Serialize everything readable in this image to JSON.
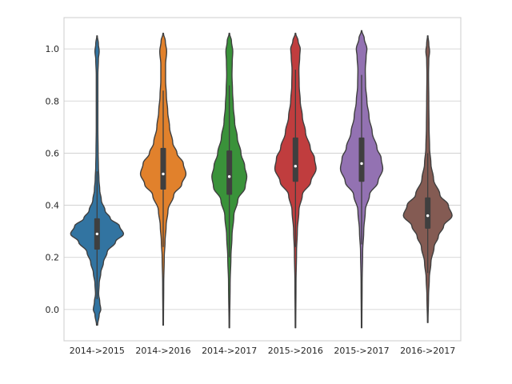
{
  "chart_data": {
    "type": "violin",
    "title": "",
    "xlabel": "",
    "ylabel": "",
    "ylim": [
      -0.12,
      1.12
    ],
    "y_ticks": [
      0.0,
      0.2,
      0.4,
      0.6,
      0.8,
      1.0
    ],
    "y_tick_labels": [
      "0.0",
      "0.2",
      "0.4",
      "0.6",
      "0.8",
      "1.0"
    ],
    "grid": true,
    "legend": "none",
    "categories": [
      "2014->2015",
      "2014->2016",
      "2014->2017",
      "2015->2016",
      "2015->2017",
      "2016->2017"
    ],
    "series": [
      {
        "category": "2014->2015",
        "color": "#3274a1",
        "range": [
          -0.06,
          1.05
        ],
        "median": 0.29,
        "q1": 0.23,
        "q3": 0.35,
        "whisker_low": 0.04,
        "whisker_high": 0.53,
        "density": [
          [
            -0.06,
            0.02
          ],
          [
            -0.02,
            0.08
          ],
          [
            0.0,
            0.14
          ],
          [
            0.03,
            0.1
          ],
          [
            0.06,
            0.06
          ],
          [
            0.1,
            0.08
          ],
          [
            0.14,
            0.14
          ],
          [
            0.18,
            0.24
          ],
          [
            0.22,
            0.38
          ],
          [
            0.26,
            0.7
          ],
          [
            0.29,
            1.0
          ],
          [
            0.32,
            0.85
          ],
          [
            0.35,
            0.5
          ],
          [
            0.38,
            0.3
          ],
          [
            0.42,
            0.16
          ],
          [
            0.46,
            0.1
          ],
          [
            0.5,
            0.07
          ],
          [
            0.55,
            0.05
          ],
          [
            0.6,
            0.04
          ],
          [
            0.7,
            0.03
          ],
          [
            0.8,
            0.03
          ],
          [
            0.9,
            0.03
          ],
          [
            0.96,
            0.05
          ],
          [
            0.99,
            0.08
          ],
          [
            1.02,
            0.05
          ],
          [
            1.05,
            0.01
          ]
        ]
      },
      {
        "category": "2014->2016",
        "color": "#e1812c",
        "range": [
          -0.06,
          1.06
        ],
        "median": 0.52,
        "q1": 0.46,
        "q3": 0.62,
        "whisker_low": 0.24,
        "whisker_high": 0.84,
        "density": [
          [
            -0.06,
            0.01
          ],
          [
            0.1,
            0.02
          ],
          [
            0.2,
            0.04
          ],
          [
            0.26,
            0.07
          ],
          [
            0.32,
            0.11
          ],
          [
            0.38,
            0.18
          ],
          [
            0.44,
            0.4
          ],
          [
            0.48,
            0.7
          ],
          [
            0.52,
            0.86
          ],
          [
            0.56,
            0.76
          ],
          [
            0.6,
            0.52
          ],
          [
            0.64,
            0.36
          ],
          [
            0.7,
            0.24
          ],
          [
            0.76,
            0.17
          ],
          [
            0.82,
            0.12
          ],
          [
            0.88,
            0.09
          ],
          [
            0.94,
            0.09
          ],
          [
            0.99,
            0.13
          ],
          [
            1.03,
            0.08
          ],
          [
            1.06,
            0.01
          ]
        ]
      },
      {
        "category": "2014->2017",
        "color": "#3a923a",
        "range": [
          -0.07,
          1.06
        ],
        "median": 0.51,
        "q1": 0.44,
        "q3": 0.61,
        "whisker_low": 0.2,
        "whisker_high": 0.86,
        "density": [
          [
            -0.07,
            0.01
          ],
          [
            0.1,
            0.03
          ],
          [
            0.2,
            0.06
          ],
          [
            0.28,
            0.1
          ],
          [
            0.36,
            0.17
          ],
          [
            0.42,
            0.32
          ],
          [
            0.47,
            0.6
          ],
          [
            0.51,
            0.66
          ],
          [
            0.55,
            0.58
          ],
          [
            0.6,
            0.44
          ],
          [
            0.66,
            0.3
          ],
          [
            0.72,
            0.2
          ],
          [
            0.78,
            0.15
          ],
          [
            0.84,
            0.12
          ],
          [
            0.9,
            0.1
          ],
          [
            0.95,
            0.11
          ],
          [
            0.99,
            0.13
          ],
          [
            1.03,
            0.08
          ],
          [
            1.06,
            0.01
          ]
        ]
      },
      {
        "category": "2015->2016",
        "color": "#c03d3e",
        "range": [
          -0.07,
          1.06
        ],
        "median": 0.55,
        "q1": 0.49,
        "q3": 0.66,
        "whisker_low": 0.24,
        "whisker_high": 0.92,
        "density": [
          [
            -0.07,
            0.01
          ],
          [
            0.1,
            0.02
          ],
          [
            0.22,
            0.04
          ],
          [
            0.3,
            0.07
          ],
          [
            0.38,
            0.13
          ],
          [
            0.44,
            0.26
          ],
          [
            0.49,
            0.58
          ],
          [
            0.54,
            0.78
          ],
          [
            0.58,
            0.72
          ],
          [
            0.62,
            0.56
          ],
          [
            0.68,
            0.38
          ],
          [
            0.74,
            0.26
          ],
          [
            0.8,
            0.18
          ],
          [
            0.86,
            0.14
          ],
          [
            0.92,
            0.13
          ],
          [
            0.97,
            0.16
          ],
          [
            1.0,
            0.18
          ],
          [
            1.03,
            0.1
          ],
          [
            1.06,
            0.01
          ]
        ]
      },
      {
        "category": "2015->2017",
        "color": "#9372b2",
        "range": [
          -0.07,
          1.07
        ],
        "median": 0.56,
        "q1": 0.49,
        "q3": 0.66,
        "whisker_low": 0.25,
        "whisker_high": 0.9,
        "density": [
          [
            -0.07,
            0.01
          ],
          [
            0.1,
            0.02
          ],
          [
            0.22,
            0.04
          ],
          [
            0.3,
            0.08
          ],
          [
            0.38,
            0.14
          ],
          [
            0.44,
            0.3
          ],
          [
            0.49,
            0.62
          ],
          [
            0.54,
            0.8
          ],
          [
            0.58,
            0.74
          ],
          [
            0.62,
            0.58
          ],
          [
            0.68,
            0.4
          ],
          [
            0.74,
            0.28
          ],
          [
            0.8,
            0.2
          ],
          [
            0.86,
            0.15
          ],
          [
            0.92,
            0.14
          ],
          [
            0.97,
            0.17
          ],
          [
            1.0,
            0.2
          ],
          [
            1.04,
            0.1
          ],
          [
            1.07,
            0.01
          ]
        ]
      },
      {
        "category": "2016->2017",
        "color": "#845b53",
        "range": [
          -0.05,
          1.05
        ],
        "median": 0.36,
        "q1": 0.31,
        "q3": 0.43,
        "whisker_low": 0.14,
        "whisker_high": 0.6,
        "density": [
          [
            -0.05,
            0.01
          ],
          [
            0.05,
            0.03
          ],
          [
            0.12,
            0.06
          ],
          [
            0.18,
            0.12
          ],
          [
            0.24,
            0.24
          ],
          [
            0.28,
            0.4
          ],
          [
            0.32,
            0.6
          ],
          [
            0.36,
            0.92
          ],
          [
            0.4,
            0.78
          ],
          [
            0.44,
            0.46
          ],
          [
            0.5,
            0.22
          ],
          [
            0.56,
            0.12
          ],
          [
            0.62,
            0.07
          ],
          [
            0.7,
            0.05
          ],
          [
            0.8,
            0.04
          ],
          [
            0.9,
            0.03
          ],
          [
            0.96,
            0.04
          ],
          [
            0.99,
            0.07
          ],
          [
            1.02,
            0.04
          ],
          [
            1.05,
            0.01
          ]
        ]
      }
    ]
  }
}
